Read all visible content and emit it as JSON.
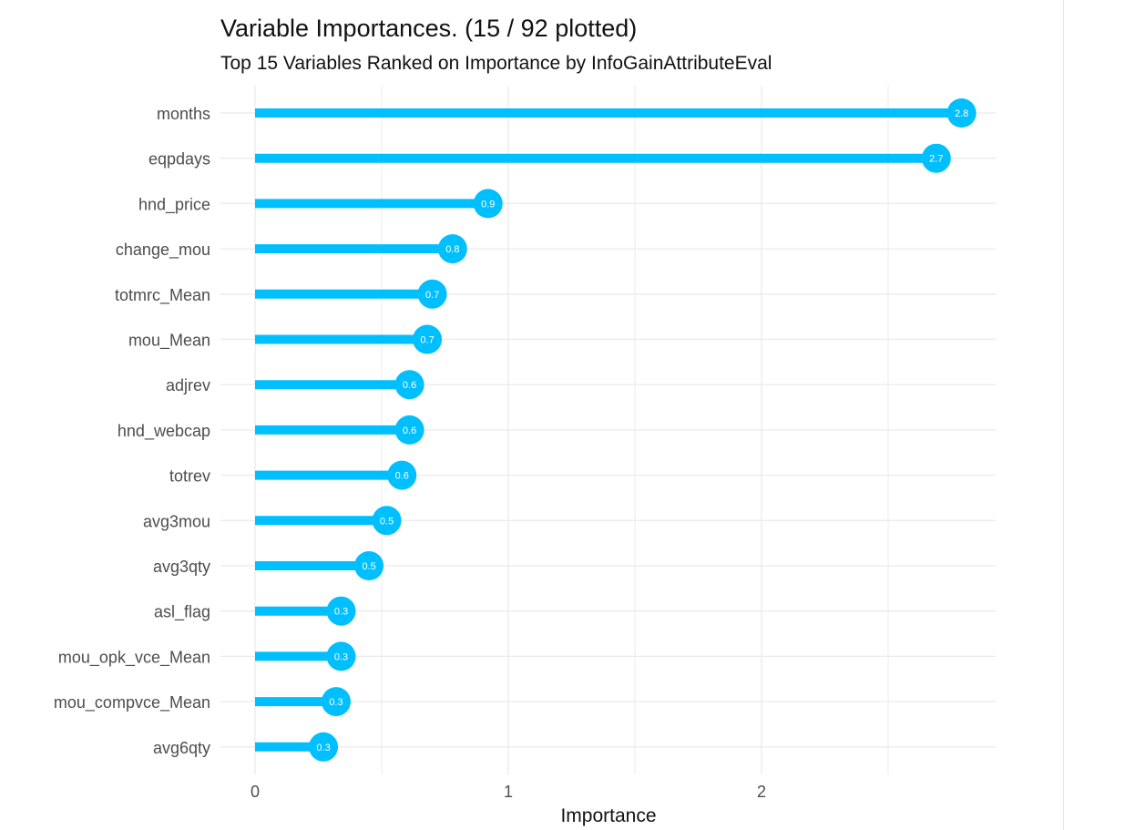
{
  "chart_data": {
    "type": "bar",
    "title": "Variable Importances. (15 / 92 plotted)",
    "subtitle": "Top 15 Variables Ranked on Importance by InfoGainAttributeEval",
    "xlabel": "Importance",
    "ylabel": "",
    "xlim": [
      0,
      2.8
    ],
    "x_ticks": [
      "0",
      "1",
      "2"
    ],
    "categories": [
      "months",
      "eqpdays",
      "hnd_price",
      "change_mou",
      "totmrc_Mean",
      "mou_Mean",
      "adjrev",
      "hnd_webcap",
      "totrev",
      "avg3mou",
      "avg3qty",
      "asl_flag",
      "mou_opk_vce_Mean",
      "mou_compvce_Mean",
      "avg6qty"
    ],
    "values": [
      2.79,
      2.69,
      0.92,
      0.78,
      0.7,
      0.68,
      0.61,
      0.61,
      0.58,
      0.52,
      0.45,
      0.34,
      0.34,
      0.32,
      0.27
    ],
    "data_labels": [
      "2.8",
      "2.7",
      "0.9",
      "0.8",
      "0.7",
      "0.7",
      "0.6",
      "0.6",
      "0.6",
      "0.5",
      "0.5",
      "0.3",
      "0.3",
      "0.3",
      "0.3"
    ],
    "orientation": "horizontal",
    "grid": true,
    "legend": "none",
    "colors": {
      "bar": "#00bfff",
      "label_text": "#ffffff",
      "grid": "#ebebeb",
      "axis_text": "#4d4d4d"
    }
  }
}
